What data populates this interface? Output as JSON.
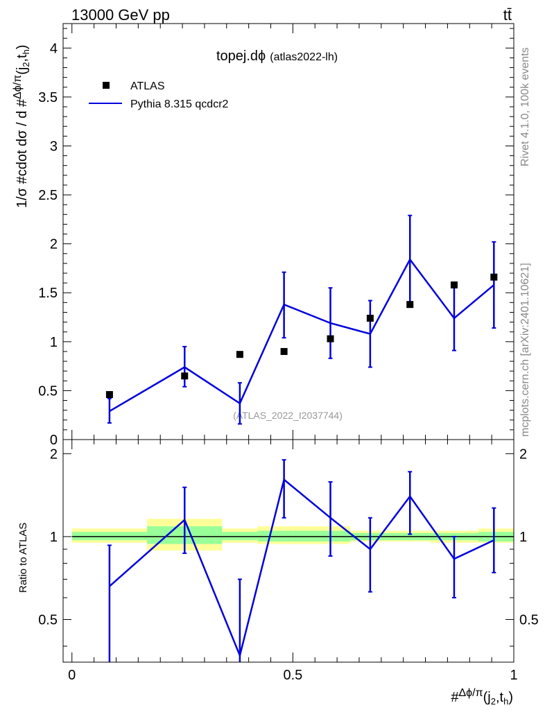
{
  "header": {
    "energy_label": "13000 GeV pp",
    "process_label": "tt̄"
  },
  "side_labels": {
    "rivet": "Rivet 4.1.0,  100k events",
    "mcplots": "mcplots.cern.ch [arXiv:2401.10621]"
  },
  "chart_data": [
    {
      "type": "scatter",
      "panel": "main",
      "title": "topej.dϕ",
      "title_suffix": "(atlas2022-lh)",
      "watermark": "(ATLAS_2022_I2037744)",
      "ylabel": "1/σ #cdot dσ / d #Δϕ/π(j2,th)",
      "ylim": [
        0,
        4.25
      ],
      "yticks": [
        0,
        0.5,
        1,
        1.5,
        2,
        2.5,
        3,
        3.5,
        4
      ],
      "ytick_labels": [
        "0",
        "0.5",
        "1",
        "1.5",
        "2",
        "2.5",
        "3",
        "3.5",
        "4"
      ],
      "xlim": [
        -0.02,
        1.0
      ],
      "legend_position": "top-left",
      "series": [
        {
          "name": "ATLAS",
          "kind": "data-points",
          "color": "#000000",
          "x": [
            0.085,
            0.255,
            0.38,
            0.48,
            0.585,
            0.675,
            0.765,
            0.865,
            0.955
          ],
          "values": [
            0.46,
            0.65,
            0.87,
            0.9,
            1.03,
            1.24,
            1.38,
            1.58,
            1.66
          ]
        },
        {
          "name": "Pythia 8.315 qcdcr2",
          "kind": "line-with-errors",
          "color": "#0000dd",
          "x": [
            0.085,
            0.255,
            0.38,
            0.48,
            0.585,
            0.675,
            0.765,
            0.865,
            0.955
          ],
          "values": [
            0.29,
            0.74,
            0.37,
            1.38,
            1.19,
            1.08,
            1.84,
            1.24,
            1.58
          ],
          "err_low": [
            0.17,
            0.54,
            0.16,
            1.04,
            0.83,
            0.74,
            1.38,
            0.91,
            1.14
          ],
          "err_high": [
            0.42,
            0.95,
            0.58,
            1.71,
            1.55,
            1.42,
            2.29,
            1.56,
            2.02
          ]
        }
      ]
    },
    {
      "type": "line",
      "panel": "ratio",
      "ylabel": "Ratio to ATLAS",
      "ylim": [
        0.35,
        2.25
      ],
      "yticks": [
        0.5,
        1,
        2
      ],
      "ytick_labels": [
        "0.5",
        "1",
        "2"
      ],
      "xlim": [
        -0.02,
        1.0
      ],
      "xticks": [
        0,
        0.5,
        1
      ],
      "xtick_labels": [
        "0",
        "0.5",
        "1"
      ],
      "xlabel": "#Δϕ/π(j2,th)",
      "reference_line": 1,
      "bands": {
        "bins": [
          [
            0.0,
            0.17
          ],
          [
            0.17,
            0.34
          ],
          [
            0.34,
            0.42
          ],
          [
            0.42,
            0.5
          ],
          [
            0.5,
            0.63
          ],
          [
            0.63,
            0.72
          ],
          [
            0.72,
            0.81
          ],
          [
            0.81,
            0.92
          ],
          [
            0.92,
            1.0
          ]
        ],
        "inner_low": [
          0.97,
          0.94,
          0.97,
          0.96,
          0.96,
          0.97,
          0.97,
          0.97,
          0.96
        ],
        "inner_high": [
          1.04,
          1.09,
          1.04,
          1.05,
          1.05,
          1.03,
          1.03,
          1.03,
          1.04
        ],
        "outer_low": [
          0.95,
          0.89,
          0.95,
          0.94,
          0.94,
          0.96,
          0.96,
          0.95,
          0.95
        ],
        "outer_high": [
          1.07,
          1.16,
          1.07,
          1.09,
          1.09,
          1.05,
          1.05,
          1.05,
          1.07
        ],
        "inner_color": "#99ff99",
        "outer_color": "#ffff99"
      },
      "series": [
        {
          "name": "Pythia 8.315 qcdcr2",
          "color": "#0000dd",
          "x": [
            0.085,
            0.255,
            0.38,
            0.48,
            0.585,
            0.675,
            0.765,
            0.865,
            0.955
          ],
          "values": [
            0.66,
            1.15,
            0.37,
            1.61,
            1.17,
            0.9,
            1.4,
            0.83,
            0.97
          ],
          "err_low": [
            0.3,
            0.87,
            0.3,
            1.17,
            0.85,
            0.63,
            1.02,
            0.6,
            0.74
          ],
          "err_high": [
            0.93,
            1.51,
            0.7,
            1.9,
            1.58,
            1.17,
            1.72,
            1.0,
            1.27
          ]
        }
      ]
    }
  ]
}
